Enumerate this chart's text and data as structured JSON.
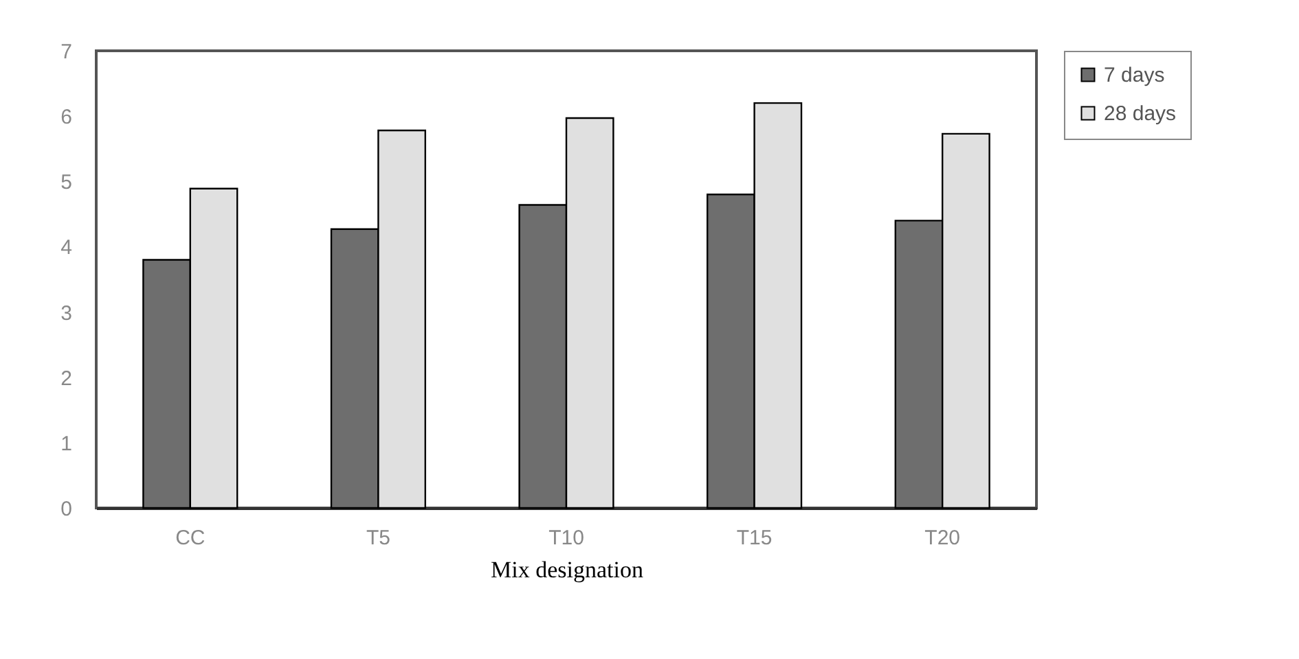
{
  "chart_data": {
    "type": "bar",
    "xlabel": "Mix designation",
    "categories": [
      "CC",
      "T5",
      "T10",
      "T15",
      "T20"
    ],
    "series": [
      {
        "name": "7 days",
        "color": "#6e6e6e",
        "values": [
          3.8,
          4.27,
          4.64,
          4.8,
          4.4
        ]
      },
      {
        "name": "28 days",
        "color": "#e0e0e0",
        "values": [
          4.89,
          5.78,
          5.97,
          6.2,
          5.73
        ]
      }
    ],
    "ylim": [
      0,
      7
    ],
    "yticks": [
      0,
      1,
      2,
      3,
      4,
      5,
      6,
      7
    ],
    "grid": false,
    "legend": "right"
  }
}
